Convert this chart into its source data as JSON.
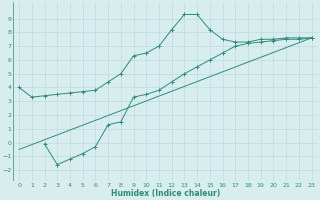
{
  "line1_x": [
    0,
    1,
    2,
    3,
    4,
    5,
    6,
    7,
    8,
    9,
    10,
    11,
    12,
    13,
    14,
    15,
    16,
    17,
    18,
    19,
    20,
    21,
    22,
    23
  ],
  "line1_y": [
    4.0,
    3.3,
    3.4,
    3.5,
    3.6,
    3.7,
    3.8,
    4.4,
    5.0,
    6.3,
    6.5,
    7.0,
    8.2,
    9.3,
    9.3,
    8.2,
    7.5,
    7.3,
    7.3,
    7.5,
    7.5,
    7.6,
    7.6,
    7.6
  ],
  "line2_x": [
    2,
    3,
    4,
    5,
    6,
    7,
    8,
    9,
    10,
    11,
    12,
    13,
    14,
    15,
    16,
    17,
    18,
    19,
    20,
    21,
    22,
    23
  ],
  "line2_y": [
    -0.1,
    -1.6,
    -1.2,
    -0.8,
    -0.3,
    1.3,
    1.5,
    3.3,
    3.5,
    3.8,
    4.4,
    5.0,
    5.5,
    6.0,
    6.5,
    7.0,
    7.2,
    7.3,
    7.4,
    7.5,
    7.5,
    7.6
  ],
  "line3_x": [
    0,
    23
  ],
  "line3_y": [
    -0.5,
    7.6
  ],
  "color": "#2e8b7a",
  "bg_color": "#d8eeee",
  "grid_color": "#b8d8d8",
  "xlabel": "Humidex (Indice chaleur)",
  "xlim": [
    -0.5,
    23.5
  ],
  "ylim": [
    -2.8,
    10.2
  ],
  "yticks": [
    -2,
    -1,
    0,
    1,
    2,
    3,
    4,
    5,
    6,
    7,
    8,
    9
  ],
  "xticks": [
    0,
    1,
    2,
    3,
    4,
    5,
    6,
    7,
    8,
    9,
    10,
    11,
    12,
    13,
    14,
    15,
    16,
    17,
    18,
    19,
    20,
    21,
    22,
    23
  ]
}
